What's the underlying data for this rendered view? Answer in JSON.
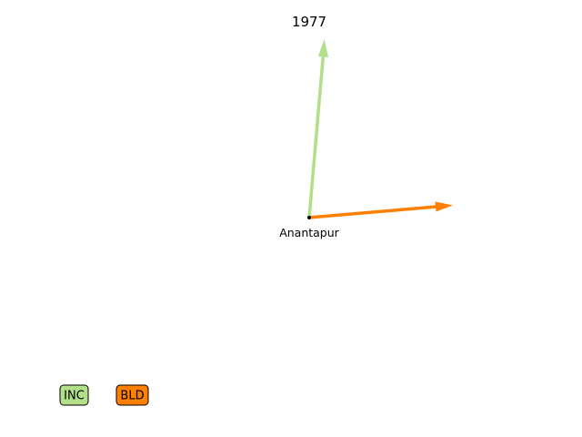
{
  "title": "1977",
  "place": {
    "name": "Anantapur"
  },
  "arrows": [
    {
      "party": "INC",
      "color": "#b2df8a"
    },
    {
      "party": "BLD",
      "color": "#ff7f00"
    }
  ],
  "legend": [
    {
      "label": "INC",
      "color": "#b2df8a"
    },
    {
      "label": "BLD",
      "color": "#ff7f00"
    }
  ]
}
